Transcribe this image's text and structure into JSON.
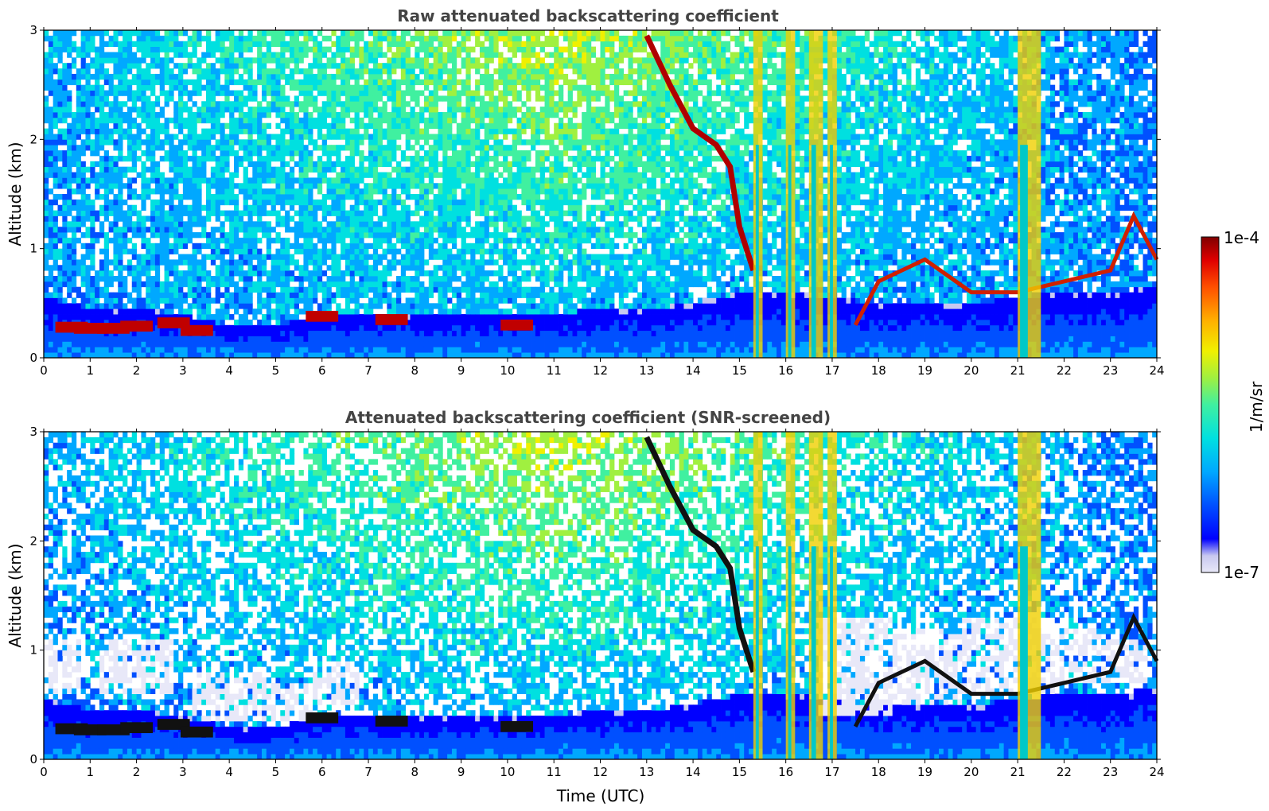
{
  "chart_data": [
    {
      "type": "heatmap",
      "title": "Raw attenuated backscattering coefficient",
      "xlabel": "",
      "ylabel": "Altitude (km)",
      "xlim": [
        0,
        24
      ],
      "ylim": [
        0,
        3
      ],
      "x_ticks": [
        0,
        1,
        2,
        3,
        4,
        5,
        6,
        7,
        8,
        9,
        10,
        11,
        12,
        13,
        14,
        15,
        16,
        17,
        18,
        19,
        20,
        21,
        22,
        23,
        24
      ],
      "y_ticks": [
        0,
        1,
        2,
        3
      ],
      "features": {
        "boundary_layer_top_km": [
          [
            0,
            0.55
          ],
          [
            1,
            0.45
          ],
          [
            2,
            0.45
          ],
          [
            3,
            0.4
          ],
          [
            4,
            0.3
          ],
          [
            5,
            0.3
          ],
          [
            6,
            0.4
          ],
          [
            7,
            0.4
          ],
          [
            8,
            0.4
          ],
          [
            9,
            0.4
          ],
          [
            10,
            0.4
          ],
          [
            11,
            0.4
          ],
          [
            12,
            0.45
          ],
          [
            13,
            0.45
          ],
          [
            14,
            0.5
          ],
          [
            15,
            0.6
          ],
          [
            16,
            0.6
          ],
          [
            17,
            0.55
          ],
          [
            18,
            0.5
          ],
          [
            19,
            0.5
          ],
          [
            20,
            0.5
          ],
          [
            21,
            0.55
          ],
          [
            22,
            0.6
          ],
          [
            23,
            0.6
          ],
          [
            24,
            0.65
          ]
        ],
        "low_cloud_km": [
          [
            0.6,
            0.28
          ],
          [
            1.0,
            0.27
          ],
          [
            1.5,
            0.27
          ],
          [
            2.0,
            0.29
          ],
          [
            2.8,
            0.32
          ],
          [
            3.3,
            0.25
          ],
          [
            6.0,
            0.38
          ],
          [
            7.5,
            0.35
          ],
          [
            10.2,
            0.3
          ]
        ],
        "descending_cloud_km": [
          [
            13.0,
            2.95
          ],
          [
            13.5,
            2.5
          ],
          [
            14.0,
            2.1
          ],
          [
            14.5,
            1.95
          ],
          [
            14.8,
            1.75
          ],
          [
            15.0,
            1.2
          ],
          [
            15.3,
            0.8
          ]
        ],
        "precipitation_columns_h": [
          [
            15.3,
            15.5
          ],
          [
            16.0,
            16.2
          ],
          [
            16.5,
            16.8
          ],
          [
            16.9,
            17.1
          ],
          [
            21.0,
            21.5
          ]
        ],
        "upper_cloud_layer_km": [
          [
            17.5,
            0.3
          ],
          [
            18.0,
            0.7
          ],
          [
            19.0,
            0.9
          ],
          [
            20.0,
            0.6
          ],
          [
            21.0,
            0.6
          ],
          [
            22.0,
            0.7
          ],
          [
            23.0,
            0.8
          ],
          [
            23.5,
            1.3
          ],
          [
            24.0,
            0.9
          ]
        ]
      }
    },
    {
      "type": "heatmap",
      "title": "Attenuated backscattering coefficient (SNR-screened)",
      "xlabel": "Time (UTC)",
      "ylabel": "Altitude (km)",
      "xlim": [
        0,
        24
      ],
      "ylim": [
        0,
        3
      ],
      "x_ticks": [
        0,
        1,
        2,
        3,
        4,
        5,
        6,
        7,
        8,
        9,
        10,
        11,
        12,
        13,
        14,
        15,
        16,
        17,
        18,
        19,
        20,
        21,
        22,
        23,
        24
      ],
      "y_ticks": [
        0,
        1,
        2,
        3
      ],
      "features": {
        "screened_gap_km": [
          [
            0,
            0.6,
            1.1
          ],
          [
            2,
            0.6,
            1.1
          ],
          [
            4,
            0.35,
            0.8
          ],
          [
            5,
            0.35,
            0.7
          ],
          [
            6,
            0.5,
            0.9
          ],
          [
            17.5,
            0.4,
            1.3
          ],
          [
            19,
            0.5,
            1.2
          ],
          [
            20,
            0.6,
            1.3
          ],
          [
            21,
            0.6,
            1.3
          ],
          [
            22,
            0.7,
            1.2
          ],
          [
            23,
            0.7,
            1.1
          ]
        ]
      }
    }
  ],
  "colorbar": {
    "label": "1/m/sr",
    "max_label": "1e-4",
    "min_label": "1e-7",
    "scale": "log",
    "range": [
      1e-07,
      0.0001
    ],
    "colormap": [
      "#e8e8f8",
      "#c8c8f0",
      "#0000ff",
      "#0050ff",
      "#00a8ff",
      "#00e0e0",
      "#40f0a0",
      "#a0f040",
      "#f0f000",
      "#ffb000",
      "#ff5000",
      "#e00000",
      "#800000"
    ]
  }
}
